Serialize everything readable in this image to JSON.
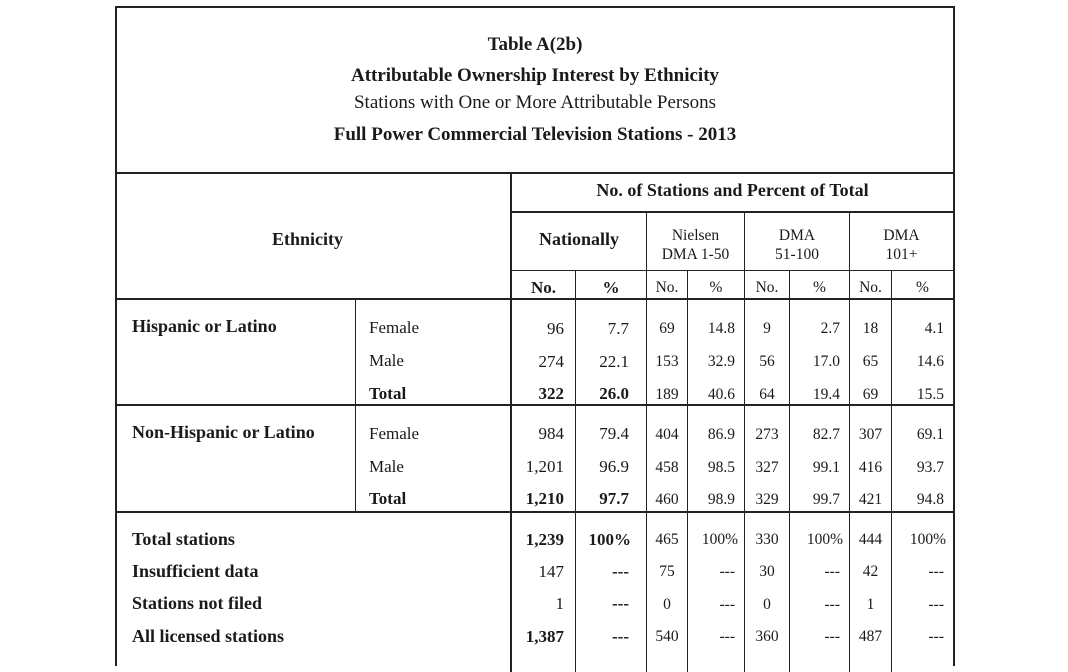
{
  "title": {
    "line1": "Table A(2b)",
    "line2": "Attributable Ownership Interest by Ethnicity",
    "line3": "Stations with One or More Attributable Persons",
    "line4": "Full Power Commercial Television Stations - 2013"
  },
  "header": {
    "ethnicity": "Ethnicity",
    "group_title": "No. of Stations and Percent of Total",
    "nationally": "Nationally",
    "nielsen_line1": "Nielsen",
    "nielsen_line2": "DMA 1-50",
    "dma2_line1": "DMA",
    "dma2_line2": "51-100",
    "dma3_line1": "DMA",
    "dma3_line2": "101+",
    "no": "No.",
    "pct": "%"
  },
  "groups": [
    {
      "name": "Hispanic or Latino",
      "rows": [
        {
          "label": "Female",
          "nat_no": "96",
          "nat_pct": "7.7",
          "d1_no": "69",
          "d1_pct": "14.8",
          "d2_no": "9",
          "d2_pct": "2.7",
          "d3_no": "18",
          "d3_pct": "4.1"
        },
        {
          "label": "Male",
          "nat_no": "274",
          "nat_pct": "22.1",
          "d1_no": "153",
          "d1_pct": "32.9",
          "d2_no": "56",
          "d2_pct": "17.0",
          "d3_no": "65",
          "d3_pct": "14.6"
        },
        {
          "label": "Total",
          "nat_no": "322",
          "nat_pct": "26.0",
          "d1_no": "189",
          "d1_pct": "40.6",
          "d2_no": "64",
          "d2_pct": "19.4",
          "d3_no": "69",
          "d3_pct": "15.5"
        }
      ]
    },
    {
      "name": "Non-Hispanic or Latino",
      "rows": [
        {
          "label": "Female",
          "nat_no": "984",
          "nat_pct": "79.4",
          "d1_no": "404",
          "d1_pct": "86.9",
          "d2_no": "273",
          "d2_pct": "82.7",
          "d3_no": "307",
          "d3_pct": "69.1"
        },
        {
          "label": "Male",
          "nat_no": "1,201",
          "nat_pct": "96.9",
          "d1_no": "458",
          "d1_pct": "98.5",
          "d2_no": "327",
          "d2_pct": "99.1",
          "d3_no": "416",
          "d3_pct": "93.7"
        },
        {
          "label": "Total",
          "nat_no": "1,210",
          "nat_pct": "97.7",
          "d1_no": "460",
          "d1_pct": "98.9",
          "d2_no": "329",
          "d2_pct": "99.7",
          "d3_no": "421",
          "d3_pct": "94.8"
        }
      ]
    }
  ],
  "summary": [
    {
      "label": "Total stations",
      "nat_no": "1,239",
      "nat_pct": "100%",
      "d1_no": "465",
      "d1_pct": "100%",
      "d2_no": "330",
      "d2_pct": "100%",
      "d3_no": "444",
      "d3_pct": "100%"
    },
    {
      "label": "Insufficient data",
      "nat_no": "147",
      "nat_pct": "---",
      "d1_no": "75",
      "d1_pct": "---",
      "d2_no": "30",
      "d2_pct": "---",
      "d3_no": "42",
      "d3_pct": "---"
    },
    {
      "label": "Stations not filed",
      "nat_no": "1",
      "nat_pct": "---",
      "d1_no": "0",
      "d1_pct": "---",
      "d2_no": "0",
      "d2_pct": "---",
      "d3_no": "1",
      "d3_pct": "---"
    },
    {
      "label": "All licensed stations",
      "nat_no": "1,387",
      "nat_pct": "---",
      "d1_no": "540",
      "d1_pct": "---",
      "d2_no": "360",
      "d2_pct": "---",
      "d3_no": "487",
      "d3_pct": "---"
    }
  ]
}
